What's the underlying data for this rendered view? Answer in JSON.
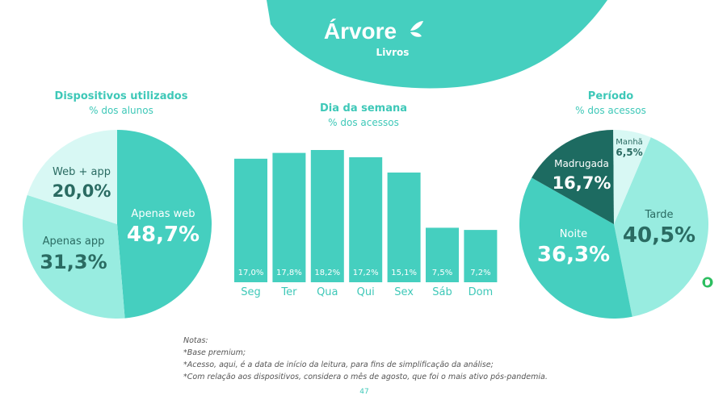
{
  "brand": {
    "name": "Árvore",
    "sub": "Livros"
  },
  "colors": {
    "teal": "#45cfbf",
    "teal_dark": "#1d6b61",
    "teal_mid": "#30b3a1",
    "teal_light": "#98ece0",
    "teal_pale": "#d8f8f4",
    "label_dark": "#2a6b62"
  },
  "notes": [
    "Notas:",
    "*Base premium;",
    "*Acesso, aqui, é a data de início da leitura, para fins de simplificação da análise;",
    "*Com relação aos dispositivos, considera o mês de agosto, que foi o mais ativo pós-pandemia."
  ],
  "page_number": "47",
  "chart_data": [
    {
      "type": "pie",
      "title": "Dispositivos utilizados",
      "subtitle": "% dos alunos",
      "slices": [
        {
          "label": "Apenas web",
          "value": 48.7,
          "display": "48,7%",
          "color": "#45cfbf",
          "text_color": "#ffffff"
        },
        {
          "label": "Apenas app",
          "value": 31.3,
          "display": "31,3%",
          "color": "#98ece0",
          "text_color": "#2a6b62"
        },
        {
          "label": "Web + app",
          "value": 20.0,
          "display": "20,0%",
          "color": "#d8f8f4",
          "text_color": "#2a6b62"
        }
      ]
    },
    {
      "type": "bar",
      "title": "Dia da semana",
      "subtitle": "% dos acessos",
      "categories": [
        "Seg",
        "Ter",
        "Qua",
        "Qui",
        "Sex",
        "Sáb",
        "Dom"
      ],
      "values": [
        17.0,
        17.8,
        18.2,
        17.2,
        15.1,
        7.5,
        7.2
      ],
      "value_labels": [
        "17,0%",
        "17,8%",
        "18,2%",
        "17,2%",
        "15,1%",
        "7,5%",
        "7,2%"
      ],
      "color": "#45cfbf",
      "ylim": [
        0,
        18.2
      ]
    },
    {
      "type": "pie",
      "title": "Período",
      "subtitle": "% dos acessos",
      "slices": [
        {
          "label": "Tarde",
          "value": 40.5,
          "display": "40,5%",
          "color": "#98ece0",
          "text_color": "#2a6b62"
        },
        {
          "label": "Noite",
          "value": 36.3,
          "display": "36,3%",
          "color": "#45cfbf",
          "text_color": "#ffffff"
        },
        {
          "label": "Madrugada",
          "value": 16.7,
          "display": "16,7%",
          "color": "#1d6b61",
          "text_color": "#ffffff"
        },
        {
          "label": "Manhã",
          "value": 6.5,
          "display": "6,5%",
          "color": "#d8f8f4",
          "text_color": "#2a6b62"
        }
      ]
    }
  ]
}
